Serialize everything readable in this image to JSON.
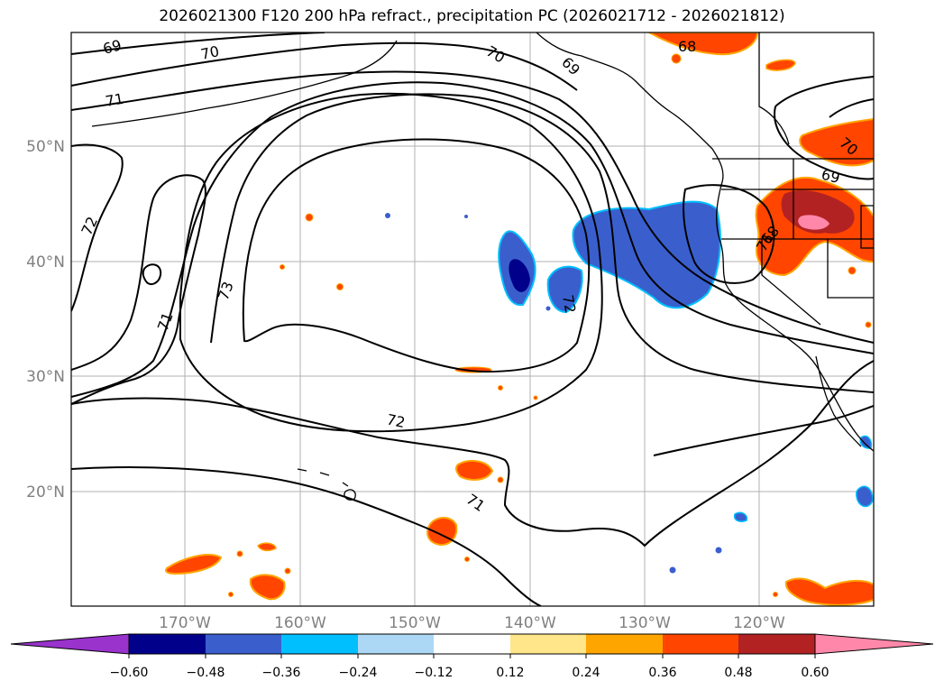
{
  "title": "2026021300 F120 200 hPa refract., precipitation PC (2026021712 - 2026021812)",
  "map": {
    "lat_labels": [
      "50°N",
      "40°N",
      "30°N",
      "20°N"
    ],
    "lon_labels": [
      "170°W",
      "160°W",
      "150°W",
      "140°W",
      "130°W",
      "120°W"
    ],
    "contour_labels": [
      "69",
      "70",
      "71",
      "72",
      "70",
      "69",
      "71",
      "72",
      "73",
      "71",
      "72",
      "71",
      "70",
      "68",
      "69",
      "68"
    ]
  },
  "colorbar": {
    "tick_labels": [
      "−0.60",
      "−0.48",
      "−0.36",
      "−0.24",
      "−0.12",
      "0.12",
      "0.24",
      "0.36",
      "0.48",
      "0.60"
    ],
    "colors": [
      "#9933cc",
      "#00008b",
      "#3a5fcd",
      "#00bfff",
      "#add8f5",
      "#ffffff",
      "#ffe68a",
      "#ffa500",
      "#ff4500",
      "#b22222",
      "#ff88aa"
    ]
  }
}
